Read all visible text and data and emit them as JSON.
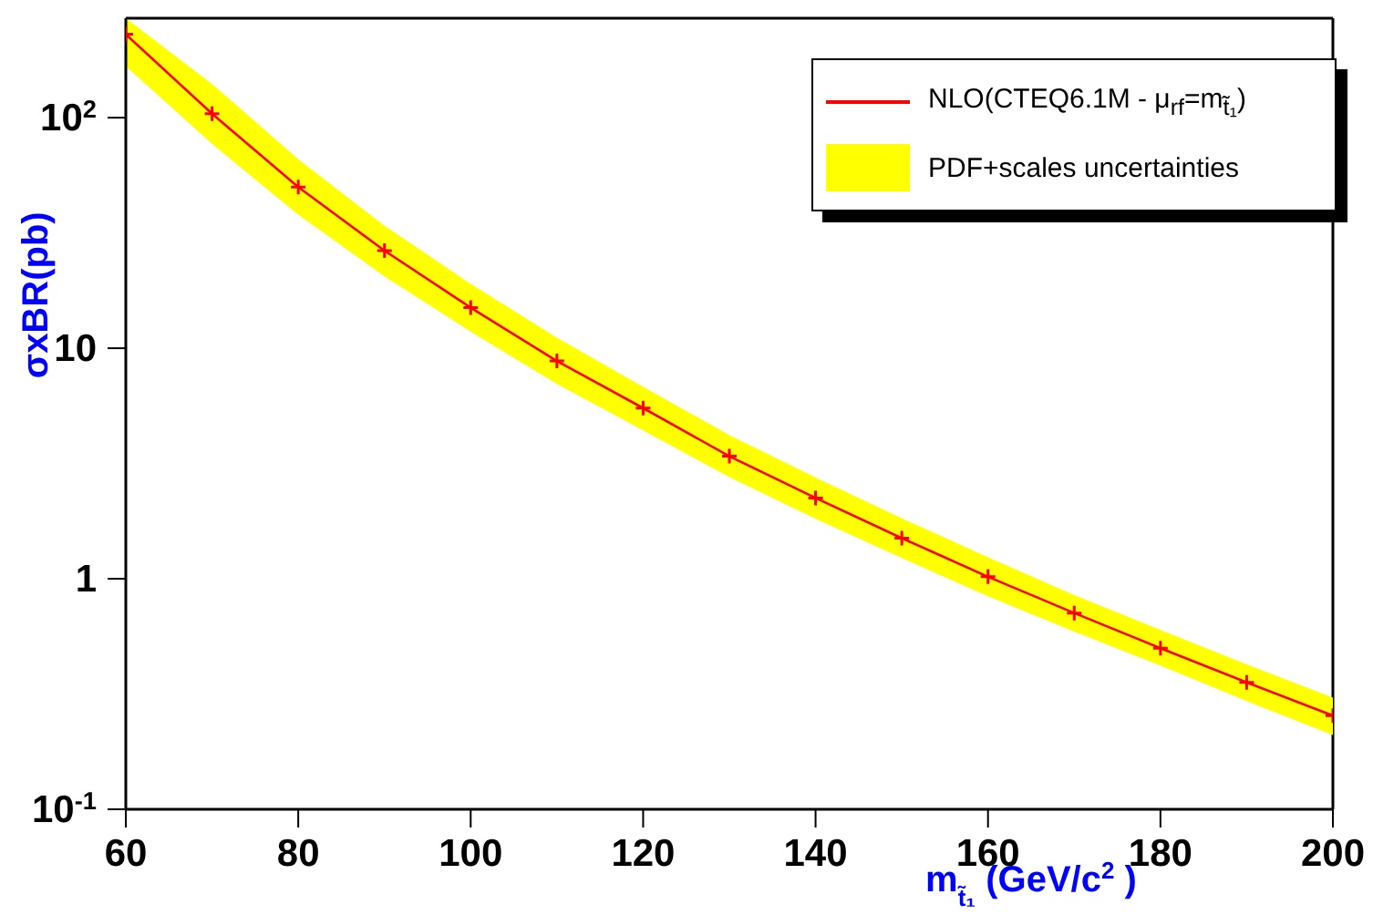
{
  "chart_data": {
    "type": "line",
    "xlabel": "m$_{t̃₁}$ (GeV/c$^{2}$)",
    "ylabel": "σxBR(pb)",
    "x": [
      60,
      70,
      80,
      90,
      100,
      110,
      120,
      130,
      140,
      150,
      160,
      170,
      180,
      190,
      200
    ],
    "series": [
      {
        "name": "NLO(CTEQ6.1M - μ$_{rf}$=m$_{t̃₁}$)",
        "color": "#ff0000",
        "values": [
          230,
          104,
          50,
          26.5,
          15,
          8.8,
          5.5,
          3.4,
          2.24,
          1.5,
          1.02,
          0.71,
          0.5,
          0.355,
          0.255
        ],
        "lower": [
          167,
          77,
          38,
          20.5,
          11.8,
          7.0,
          4.4,
          2.76,
          1.82,
          1.23,
          0.84,
          0.59,
          0.42,
          0.295,
          0.21
        ],
        "upper": [
          270,
          140,
          66,
          34,
          19,
          11.1,
          6.8,
          4.2,
          2.75,
          1.83,
          1.24,
          0.85,
          0.6,
          0.425,
          0.305
        ]
      }
    ],
    "annotations": [
      "PDF+scales uncertainties"
    ],
    "xlim": [
      60,
      200
    ],
    "xticks": [
      60,
      80,
      100,
      120,
      140,
      160,
      180,
      200
    ],
    "ylim": [
      0.1,
      270
    ],
    "yticks": [
      {
        "value": 0.1,
        "label": "10$^{-1}$"
      },
      1,
      10,
      {
        "value": 100,
        "label": "10$^{2}$"
      }
    ],
    "log": "y",
    "marker": "cross",
    "line_style": "solid",
    "legend": "top right"
  }
}
